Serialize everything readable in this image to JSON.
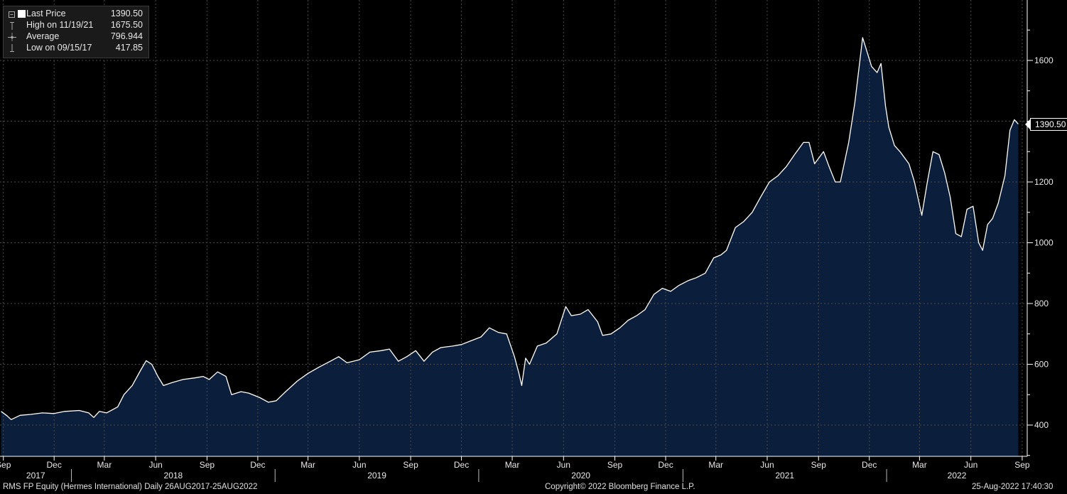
{
  "chart_data": {
    "type": "area",
    "x_start": "2017-08-26",
    "x_end": "2022-08-25",
    "series": [
      {
        "name": "Last Price",
        "points": [
          [
            "2017-08-28",
            445
          ],
          [
            "2017-09-08",
            430
          ],
          [
            "2017-09-15",
            418
          ],
          [
            "2017-10-01",
            432
          ],
          [
            "2017-10-20",
            435
          ],
          [
            "2017-11-10",
            440
          ],
          [
            "2017-12-01",
            438
          ],
          [
            "2017-12-20",
            445
          ],
          [
            "2018-01-15",
            448
          ],
          [
            "2018-02-01",
            440
          ],
          [
            "2018-02-10",
            425
          ],
          [
            "2018-02-20",
            445
          ],
          [
            "2018-03-05",
            440
          ],
          [
            "2018-03-25",
            460
          ],
          [
            "2018-04-05",
            500
          ],
          [
            "2018-04-20",
            530
          ],
          [
            "2018-05-05",
            580
          ],
          [
            "2018-05-15",
            612
          ],
          [
            "2018-05-25",
            600
          ],
          [
            "2018-06-05",
            560
          ],
          [
            "2018-06-15",
            530
          ],
          [
            "2018-07-01",
            540
          ],
          [
            "2018-07-20",
            550
          ],
          [
            "2018-08-10",
            555
          ],
          [
            "2018-08-25",
            560
          ],
          [
            "2018-09-05",
            550
          ],
          [
            "2018-09-20",
            575
          ],
          [
            "2018-10-05",
            560
          ],
          [
            "2018-10-15",
            500
          ],
          [
            "2018-11-01",
            510
          ],
          [
            "2018-11-15",
            505
          ],
          [
            "2018-12-05",
            490
          ],
          [
            "2018-12-20",
            475
          ],
          [
            "2019-01-03",
            480
          ],
          [
            "2019-01-20",
            510
          ],
          [
            "2019-02-10",
            545
          ],
          [
            "2019-03-01",
            570
          ],
          [
            "2019-03-20",
            590
          ],
          [
            "2019-04-10",
            610
          ],
          [
            "2019-04-25",
            625
          ],
          [
            "2019-05-10",
            605
          ],
          [
            "2019-06-01",
            615
          ],
          [
            "2019-06-20",
            640
          ],
          [
            "2019-07-10",
            645
          ],
          [
            "2019-07-25",
            650
          ],
          [
            "2019-08-10",
            610
          ],
          [
            "2019-08-25",
            625
          ],
          [
            "2019-09-10",
            645
          ],
          [
            "2019-09-25",
            610
          ],
          [
            "2019-10-10",
            640
          ],
          [
            "2019-10-25",
            655
          ],
          [
            "2019-11-15",
            660
          ],
          [
            "2019-12-01",
            665
          ],
          [
            "2019-12-15",
            675
          ],
          [
            "2020-01-05",
            690
          ],
          [
            "2020-01-20",
            720
          ],
          [
            "2020-02-05",
            705
          ],
          [
            "2020-02-20",
            700
          ],
          [
            "2020-03-05",
            625
          ],
          [
            "2020-03-13",
            570
          ],
          [
            "2020-03-18",
            530
          ],
          [
            "2020-03-25",
            620
          ],
          [
            "2020-04-01",
            600
          ],
          [
            "2020-04-15",
            660
          ],
          [
            "2020-05-01",
            670
          ],
          [
            "2020-05-20",
            700
          ],
          [
            "2020-06-05",
            790
          ],
          [
            "2020-06-15",
            760
          ],
          [
            "2020-07-01",
            765
          ],
          [
            "2020-07-15",
            780
          ],
          [
            "2020-08-01",
            740
          ],
          [
            "2020-08-10",
            695
          ],
          [
            "2020-08-25",
            700
          ],
          [
            "2020-09-10",
            720
          ],
          [
            "2020-09-25",
            745
          ],
          [
            "2020-10-10",
            760
          ],
          [
            "2020-10-25",
            780
          ],
          [
            "2020-11-10",
            830
          ],
          [
            "2020-11-25",
            850
          ],
          [
            "2020-12-10",
            840
          ],
          [
            "2020-12-25",
            860
          ],
          [
            "2021-01-10",
            875
          ],
          [
            "2021-01-25",
            885
          ],
          [
            "2021-02-10",
            900
          ],
          [
            "2021-02-25",
            950
          ],
          [
            "2021-03-10",
            960
          ],
          [
            "2021-03-20",
            975
          ],
          [
            "2021-04-05",
            1050
          ],
          [
            "2021-04-20",
            1070
          ],
          [
            "2021-05-05",
            1100
          ],
          [
            "2021-05-20",
            1150
          ],
          [
            "2021-06-05",
            1200
          ],
          [
            "2021-06-20",
            1220
          ],
          [
            "2021-07-05",
            1250
          ],
          [
            "2021-07-20",
            1290
          ],
          [
            "2021-08-05",
            1330
          ],
          [
            "2021-08-15",
            1330
          ],
          [
            "2021-08-25",
            1260
          ],
          [
            "2021-09-10",
            1300
          ],
          [
            "2021-09-20",
            1250
          ],
          [
            "2021-10-01",
            1200
          ],
          [
            "2021-10-10",
            1200
          ],
          [
            "2021-10-25",
            1330
          ],
          [
            "2021-11-05",
            1460
          ],
          [
            "2021-11-19",
            1675
          ],
          [
            "2021-11-25",
            1640
          ],
          [
            "2021-12-05",
            1580
          ],
          [
            "2021-12-15",
            1560
          ],
          [
            "2021-12-22",
            1590
          ],
          [
            "2021-12-30",
            1450
          ],
          [
            "2022-01-05",
            1380
          ],
          [
            "2022-01-15",
            1320
          ],
          [
            "2022-01-25",
            1300
          ],
          [
            "2022-02-10",
            1260
          ],
          [
            "2022-02-20",
            1200
          ],
          [
            "2022-03-05",
            1090
          ],
          [
            "2022-03-15",
            1200
          ],
          [
            "2022-03-25",
            1300
          ],
          [
            "2022-04-05",
            1290
          ],
          [
            "2022-04-15",
            1230
          ],
          [
            "2022-04-25",
            1150
          ],
          [
            "2022-05-05",
            1030
          ],
          [
            "2022-05-15",
            1020
          ],
          [
            "2022-05-25",
            1110
          ],
          [
            "2022-06-05",
            1120
          ],
          [
            "2022-06-15",
            1000
          ],
          [
            "2022-06-22",
            975
          ],
          [
            "2022-07-01",
            1060
          ],
          [
            "2022-07-10",
            1080
          ],
          [
            "2022-07-20",
            1130
          ],
          [
            "2022-08-01",
            1220
          ],
          [
            "2022-08-10",
            1370
          ],
          [
            "2022-08-18",
            1405
          ],
          [
            "2022-08-25",
            1390.5
          ]
        ]
      }
    ],
    "y_ticks": [
      400,
      600,
      800,
      1000,
      1200,
      1600
    ],
    "ylim": [
      300,
      1750
    ],
    "x_month_ticks": [
      {
        "label": "Sep",
        "date": "2017-09-01"
      },
      {
        "label": "Dec",
        "date": "2017-12-01"
      },
      {
        "label": "Mar",
        "date": "2018-03-01"
      },
      {
        "label": "Jun",
        "date": "2018-06-01"
      },
      {
        "label": "Sep",
        "date": "2018-09-01"
      },
      {
        "label": "Dec",
        "date": "2018-12-01"
      },
      {
        "label": "Mar",
        "date": "2019-03-01"
      },
      {
        "label": "Jun",
        "date": "2019-06-01"
      },
      {
        "label": "Sep",
        "date": "2019-09-01"
      },
      {
        "label": "Dec",
        "date": "2019-12-01"
      },
      {
        "label": "Mar",
        "date": "2020-03-01"
      },
      {
        "label": "Jun",
        "date": "2020-06-01"
      },
      {
        "label": "Sep",
        "date": "2020-09-01"
      },
      {
        "label": "Dec",
        "date": "2020-12-01"
      },
      {
        "label": "Mar",
        "date": "2021-03-01"
      },
      {
        "label": "Jun",
        "date": "2021-06-01"
      },
      {
        "label": "Sep",
        "date": "2021-09-01"
      },
      {
        "label": "Dec",
        "date": "2021-12-01"
      },
      {
        "label": "Mar",
        "date": "2022-03-01"
      },
      {
        "label": "Jun",
        "date": "2022-06-01"
      },
      {
        "label": "Sep",
        "date": "2022-09-01"
      }
    ],
    "x_year_labels": [
      "2017",
      "2018",
      "2019",
      "2020",
      "2021",
      "2022"
    ],
    "last_value_label": "1390.50",
    "grid": true,
    "legend_position": "top-left",
    "colors": {
      "line": "#ffffff",
      "fill": "#0b1f3d",
      "grid": "#4a4a4a",
      "background": "#000000"
    }
  },
  "legend": {
    "last_price": {
      "label": "Last Price",
      "value": "1390.50"
    },
    "high": {
      "label": "High on 11/19/21",
      "value": "1675.50"
    },
    "average": {
      "label": "Average",
      "value": "796.944"
    },
    "low": {
      "label": "Low on 09/15/17",
      "value": "417.85"
    }
  },
  "footer": {
    "left": "RMS FP Equity (Hermes International)  Daily 26AUG2017-25AUG2022",
    "center": "Copyright© 2022 Bloomberg Finance L.P.",
    "right": "25-Aug-2022 17:40:30"
  }
}
